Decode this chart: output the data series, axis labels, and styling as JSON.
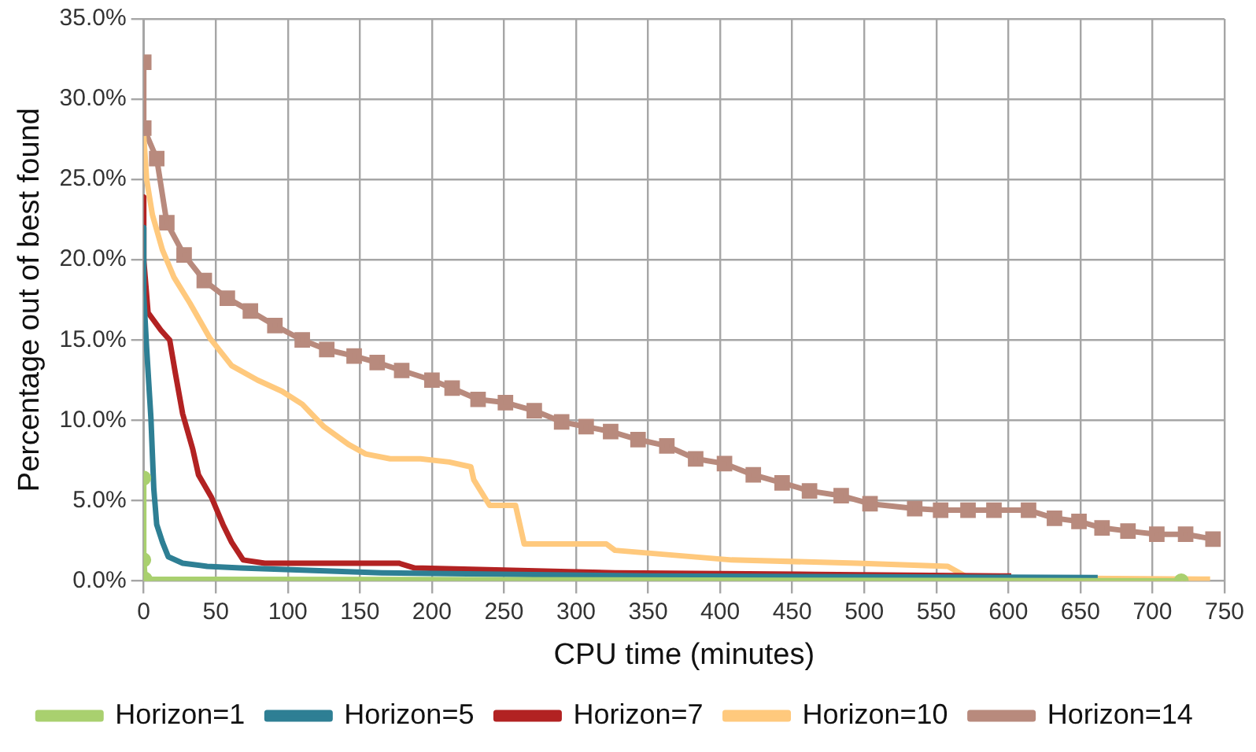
{
  "chart_data": {
    "type": "line",
    "xlabel": "CPU time (minutes)",
    "ylabel": "Percentage out of best found",
    "xlim": [
      0,
      750
    ],
    "xticks": [
      0,
      50,
      100,
      150,
      200,
      250,
      300,
      350,
      400,
      450,
      500,
      550,
      600,
      650,
      700,
      750
    ],
    "ylim": [
      0,
      35
    ],
    "yticks": [
      {
        "value": 0,
        "label": "0.0%"
      },
      {
        "value": 5,
        "label": "5.0%"
      },
      {
        "value": 10,
        "label": "10.0%"
      },
      {
        "value": 15,
        "label": "15.0%"
      },
      {
        "value": 20,
        "label": "20.0%"
      },
      {
        "value": 25,
        "label": "25.0%"
      },
      {
        "value": 30,
        "label": "30.0%"
      },
      {
        "value": 35,
        "label": "35.0%"
      }
    ],
    "grid": true,
    "legend": "bottom",
    "line_style": "solid",
    "series": [
      {
        "name": "Horizon=1",
        "color": "#a9d06f",
        "marker": "circle",
        "x": [
          0,
          0,
          1,
          720
        ],
        "values": [
          6.4,
          1.3,
          0.1,
          0
        ]
      },
      {
        "name": "Horizon=5",
        "color": "#2e7f94",
        "marker": "none",
        "x": [
          0,
          0,
          2,
          5,
          7,
          9,
          13,
          17,
          27,
          44,
          67,
          165,
          350,
          662
        ],
        "values": [
          22,
          17.8,
          14.5,
          10.1,
          5.7,
          3.5,
          2.4,
          1.5,
          1.1,
          0.9,
          0.8,
          0.5,
          0.3,
          0.2
        ]
      },
      {
        "name": "Horizon=7",
        "color": "#b22222",
        "marker": "none",
        "x": [
          0,
          0,
          3,
          12,
          18,
          22,
          27,
          34,
          38,
          47,
          55,
          61,
          69,
          84,
          177,
          188,
          327,
          466,
          602
        ],
        "values": [
          23.9,
          20,
          16.7,
          15.6,
          15,
          12.9,
          10.4,
          8.2,
          6.6,
          5.2,
          3.5,
          2.4,
          1.3,
          1.1,
          1.1,
          0.8,
          0.5,
          0.4,
          0.3
        ]
      },
      {
        "name": "Horizon=10",
        "color": "#ffc97d",
        "marker": "none",
        "x": [
          0,
          2,
          6,
          13,
          21,
          32,
          46,
          61,
          79,
          96,
          110,
          125,
          142,
          154,
          171,
          192,
          212,
          227,
          229,
          240,
          258,
          260,
          264,
          321,
          327,
          408,
          495,
          558,
          572,
          740
        ],
        "values": [
          27.7,
          25,
          22.8,
          20.6,
          18.9,
          17.3,
          15.1,
          13.4,
          12.5,
          11.8,
          11,
          9.6,
          8.5,
          7.9,
          7.6,
          7.6,
          7.4,
          7.1,
          6.3,
          4.7,
          4.7,
          3.9,
          2.3,
          2.3,
          1.9,
          1.3,
          1.1,
          0.9,
          0.2,
          0.1
        ]
      },
      {
        "name": "Horizon=14",
        "color": "#b88a7d",
        "marker": "square",
        "x": [
          0,
          0,
          9,
          16,
          28,
          42,
          58,
          74,
          91,
          110,
          127,
          146,
          162,
          179,
          200,
          214,
          232,
          251,
          271,
          290,
          307,
          324,
          343,
          363,
          383,
          403,
          423,
          443,
          462,
          484,
          504,
          535,
          553,
          572,
          590,
          614,
          632,
          649,
          665,
          683,
          703,
          723,
          742
        ],
        "values": [
          32.3,
          28.2,
          26.3,
          22.3,
          20.3,
          18.7,
          17.6,
          16.8,
          15.9,
          15,
          14.4,
          14,
          13.6,
          13.1,
          12.5,
          12,
          11.3,
          11.1,
          10.6,
          9.9,
          9.6,
          9.3,
          8.8,
          8.4,
          7.6,
          7.3,
          6.6,
          6.1,
          5.6,
          5.3,
          4.8,
          4.5,
          4.4,
          4.4,
          4.4,
          4.4,
          3.9,
          3.7,
          3.3,
          3.1,
          2.9,
          2.9,
          2.6
        ]
      }
    ]
  }
}
